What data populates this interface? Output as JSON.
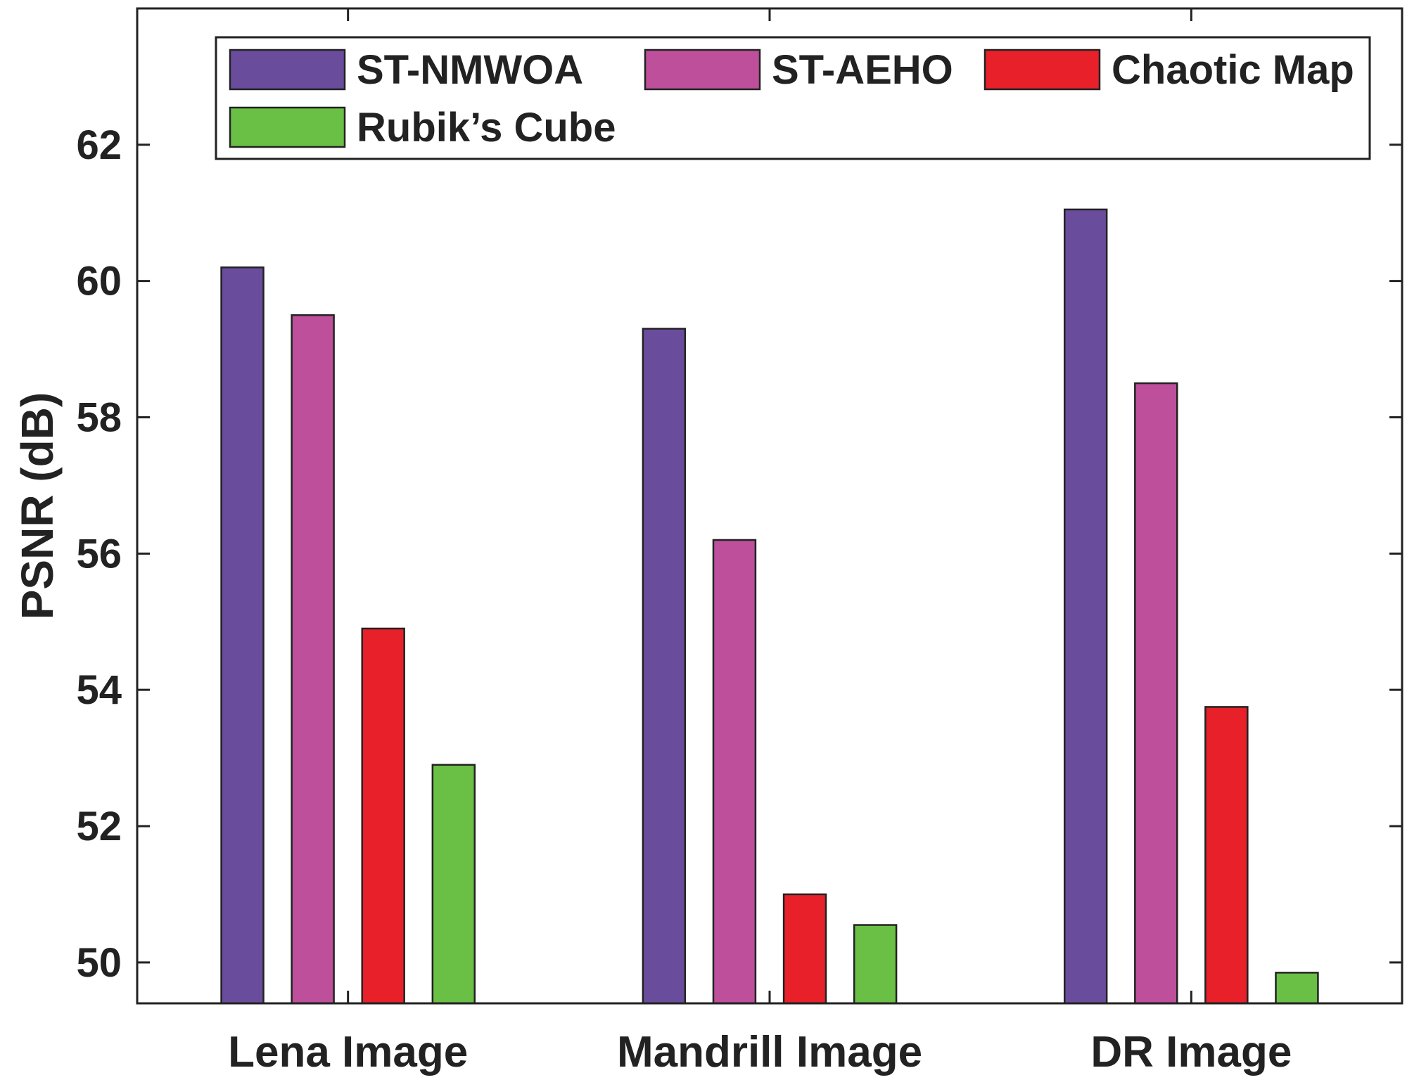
{
  "chart_data": {
    "type": "bar",
    "title": "",
    "xlabel": "",
    "ylabel": "PSNR (dB)",
    "ylim": [
      49.4,
      64
    ],
    "yticks": [
      50,
      52,
      54,
      56,
      58,
      60,
      62
    ],
    "grid": false,
    "legend_position": "top",
    "categories": [
      "Lena Image",
      "Mandrill Image",
      "DR Image"
    ],
    "series": [
      {
        "name": "ST-NMWOA",
        "color": "#6a4c9c",
        "values": [
          60.2,
          59.3,
          61.05
        ]
      },
      {
        "name": "ST-AEHO",
        "color": "#bd4f9b",
        "values": [
          59.5,
          56.2,
          58.5
        ]
      },
      {
        "name": "Chaotic Map",
        "color": "#e8202a",
        "values": [
          54.9,
          51.0,
          53.75
        ]
      },
      {
        "name": "Rubik’s Cube",
        "color": "#6abf45",
        "values": [
          52.9,
          50.55,
          49.85
        ]
      }
    ]
  }
}
